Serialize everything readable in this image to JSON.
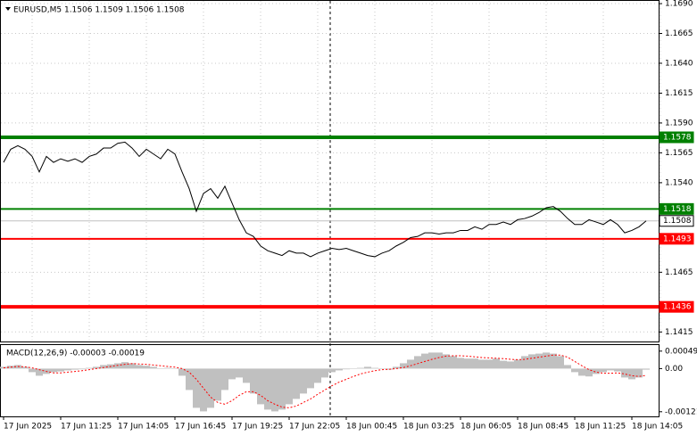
{
  "chart_data": {
    "type": "line",
    "title": "EURUSD,M5  1.1506 1.1509 1.1506 1.1508",
    "categories": [
      "17 Jun 2025",
      null,
      null,
      null,
      null,
      null,
      null,
      null,
      "17 Jun 11:25",
      null,
      null,
      null,
      null,
      null,
      null,
      null,
      "17 Jun 14:05",
      null,
      null,
      null,
      null,
      null,
      null,
      null,
      "17 Jun 16:45",
      null,
      null,
      null,
      null,
      null,
      null,
      null,
      "17 Jun 19:25",
      null,
      null,
      null,
      null,
      null,
      null,
      null,
      "17 Jun 22:05",
      null,
      null,
      null,
      null,
      null,
      null,
      null,
      "18 Jun 00:45",
      null,
      null,
      null,
      null,
      null,
      null,
      null,
      "18 Jun 03:25",
      null,
      null,
      null,
      null,
      null,
      null,
      null,
      "18 Jun 06:05",
      null,
      null,
      null,
      null,
      null,
      null,
      null,
      "18 Jun 08:45",
      null,
      null,
      null,
      null,
      null,
      null,
      null,
      "18 Jun 11:25",
      null,
      null,
      null,
      null,
      null,
      null,
      null,
      "18 Jun 14:05",
      null,
      null
    ],
    "series": [
      {
        "name": "EURUSD",
        "color": "#000000",
        "values": [
          1.1557,
          1.1568,
          1.1571,
          1.1568,
          1.1562,
          1.1549,
          1.1562,
          1.1557,
          1.156,
          1.1558,
          1.156,
          1.1557,
          1.1562,
          1.1564,
          1.1569,
          1.1569,
          1.1573,
          1.1574,
          1.1569,
          1.1562,
          1.1568,
          1.1564,
          1.156,
          1.1568,
          1.1564,
          1.1549,
          1.1535,
          1.1516,
          1.1531,
          1.1535,
          1.1527,
          1.1537,
          1.1523,
          1.1509,
          1.1498,
          1.1495,
          1.1487,
          1.1483,
          1.1481,
          1.1479,
          1.1483,
          1.1481,
          1.1481,
          1.1478,
          1.1481,
          1.1483,
          1.1485,
          1.1484,
          1.1485,
          1.1483,
          1.1481,
          1.1479,
          1.1478,
          1.1481,
          1.1483,
          1.1487,
          1.149,
          1.1494,
          1.1495,
          1.1498,
          1.1498,
          1.1497,
          1.1498,
          1.1498,
          1.15,
          1.15,
          1.1503,
          1.1501,
          1.1505,
          1.1505,
          1.1507,
          1.1505,
          1.1509,
          1.151,
          1.1512,
          1.1515,
          1.1519,
          1.152,
          1.1516,
          1.151,
          1.1505,
          1.1505,
          1.1509,
          1.1507,
          1.1505,
          1.1509,
          1.1505,
          1.1498,
          1.15,
          1.1503,
          1.1508
        ]
      }
    ],
    "ylim": [
      1.1407,
      1.1693
    ],
    "yticks": [
      {
        "value": 1.169,
        "label": "1.1690"
      },
      {
        "value": 1.1665,
        "label": "1.1665"
      },
      {
        "value": 1.164,
        "label": "1.1640"
      },
      {
        "value": 1.1615,
        "label": "1.1615"
      },
      {
        "value": 1.159,
        "label": "1.1590"
      },
      {
        "value": 1.1565,
        "label": "1.1565"
      },
      {
        "value": 1.154,
        "label": "1.1540"
      },
      {
        "value": 1.1465,
        "label": "1.1465"
      },
      {
        "value": 1.1415,
        "label": "1.1415"
      }
    ],
    "grid": true,
    "levels": [
      {
        "value": 1.1578,
        "color": "#008000",
        "width": 4,
        "label_bg": "#008000",
        "label_color": "#ffffff"
      },
      {
        "value": 1.1518,
        "color": "#008000",
        "width": 2,
        "label_bg": "#008000",
        "label_color": "#ffffff"
      },
      {
        "value": 1.1508,
        "color": "#c0c0c0",
        "width": 1,
        "label_bg": "#ffffff",
        "label_color": "#000000"
      },
      {
        "value": 1.1493,
        "color": "#ff0000",
        "width": 2,
        "label_bg": "#ff0000",
        "label_color": "#ffffff"
      },
      {
        "value": 1.1436,
        "color": "#ff0000",
        "width": 4,
        "label_bg": "#ff0000",
        "label_color": "#ffffff"
      }
    ],
    "macd": {
      "title": "MACD(12,26,9) -0.00003 -0.00019",
      "ylim": [
        -0.00134,
        0.00066
      ],
      "yticks": [
        0.00049,
        {
          "value": 0,
          "label": "0.00"
        },
        -0.00121
      ],
      "histogram": {
        "color": "#c0c0c0",
        "values": [
          5e-05,
          8e-05,
          0.0001,
          5e-05,
          -0.0001,
          -0.0002,
          -0.00015,
          -0.0001,
          -8e-05,
          -5e-05,
          -3e-05,
          -2e-05,
          2e-05,
          5e-05,
          0.0001,
          0.00012,
          0.00015,
          0.00018,
          0.00015,
          0.0001,
          8e-05,
          5e-05,
          0,
          2e-05,
          0,
          -0.0002,
          -0.0006,
          -0.0011,
          -0.0012,
          -0.0011,
          -0.0009,
          -0.0006,
          -0.0003,
          -0.00025,
          -0.0004,
          -0.0007,
          -0.001,
          -0.00115,
          -0.0012,
          -0.00115,
          -0.001,
          -0.00085,
          -0.0007,
          -0.00055,
          -0.0004,
          -0.00025,
          -0.0001,
          -5e-05,
          -2e-05,
          0,
          2e-05,
          5e-05,
          2e-05,
          0,
          -3e-05,
          5e-05,
          0.00015,
          0.00025,
          0.00035,
          0.00042,
          0.00045,
          0.00045,
          0.0004,
          0.00035,
          0.0003,
          0.00028,
          0.00028,
          0.00025,
          0.00025,
          0.00028,
          0.00022,
          0.0002,
          0.00025,
          0.00035,
          0.0004,
          0.00042,
          0.00045,
          0.00042,
          0.00035,
          0.0001,
          -0.0001,
          -0.0002,
          -0.00022,
          -0.00015,
          -0.0001,
          -5e-05,
          -8e-05,
          -0.00025,
          -0.0003,
          -0.00025,
          -3e-05
        ]
      },
      "signal": {
        "color": "#ff0000",
        "values": [
          2e-05,
          4e-05,
          6e-05,
          5e-05,
          2e-05,
          -3e-05,
          -8e-05,
          -0.00012,
          -0.00012,
          -0.0001,
          -8e-05,
          -6e-05,
          -3e-05,
          0,
          3e-05,
          6e-05,
          9e-05,
          0.00012,
          0.00014,
          0.00013,
          0.00012,
          0.0001,
          8e-05,
          6e-05,
          4e-05,
          0,
          -0.0001,
          -0.0003,
          -0.00055,
          -0.0008,
          -0.00095,
          -0.001,
          -0.0009,
          -0.00075,
          -0.00065,
          -0.00065,
          -0.00075,
          -0.0009,
          -0.001,
          -0.00108,
          -0.0011,
          -0.00105,
          -0.00095,
          -0.00085,
          -0.00072,
          -0.0006,
          -0.00048,
          -0.00038,
          -0.0003,
          -0.00022,
          -0.00015,
          -0.0001,
          -6e-05,
          -3e-05,
          -2e-05,
          0,
          3e-05,
          8e-05,
          0.00014,
          0.0002,
          0.00026,
          0.00031,
          0.00035,
          0.00036,
          0.00036,
          0.00035,
          0.00033,
          0.00031,
          0.0003,
          0.00029,
          0.00028,
          0.00026,
          0.00025,
          0.00026,
          0.00029,
          0.00032,
          0.00035,
          0.00038,
          0.00038,
          0.00032,
          0.0002,
          8e-05,
          -3e-05,
          -0.0001,
          -0.00013,
          -0.00013,
          -0.00012,
          -0.00015,
          -0.0002,
          -0.00022,
          -0.00019
        ]
      }
    }
  }
}
